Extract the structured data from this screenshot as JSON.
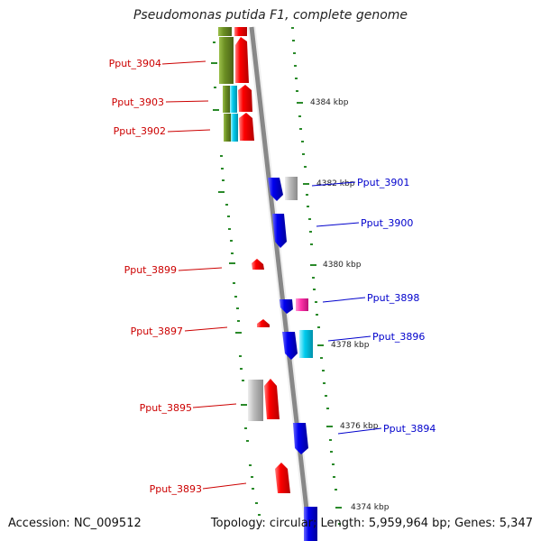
{
  "title": "Pseudomonas putida F1, complete genome",
  "footer": {
    "accession": "Accession: NC_009512",
    "summary": "Topology: circular; Length: 5,959,964 bp; Genes: 5,347"
  },
  "ruler_ticks": [
    "4384 kbp",
    "4382 kbp",
    "4380 kbp",
    "4378 kbp",
    "4376 kbp",
    "4374 kbp"
  ],
  "gene_labels_left": [
    "Pput_3904",
    "Pput_3903",
    "Pput_3902",
    "Pput_3899",
    "Pput_3897",
    "Pput_3895",
    "Pput_3893"
  ],
  "gene_labels_right": [
    "Pput_3901",
    "Pput_3900",
    "Pput_3898",
    "Pput_3896",
    "Pput_3894"
  ],
  "colors": {
    "forward_gene": "#ff0000",
    "reverse_gene": "#0000ee",
    "backbone": "#888888",
    "ticks": "#2a8a2a",
    "olive": "#6b8e23",
    "cyan": "#00ccee",
    "magenta": "#ff33aa",
    "gray": "#bbbbbb",
    "label_left": "#cc0000",
    "label_right": "#0000cc"
  }
}
